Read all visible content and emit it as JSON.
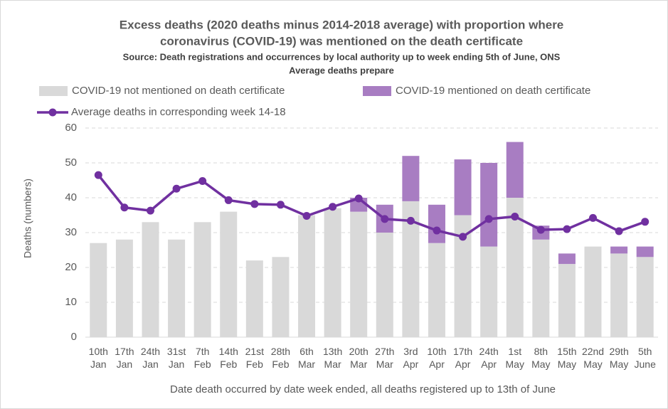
{
  "chart_data": {
    "type": "bar",
    "title": [
      "Excess deaths  (2020 deaths minus 2014-2018 average) with proportion where",
      "coronavirus (COVID-19) was mentioned on the death certificate"
    ],
    "subtitle": [
      "Source: Death registrations and occurrences by local authority up to week ending 5th of June, ONS",
      "Average deaths prepare"
    ],
    "x_label": "Date death occurred by date week ended, all deaths registered up to 13th of June",
    "y_label": "Deaths (numbers)",
    "categories": [
      "10th Jan",
      "17th Jan",
      "24th Jan",
      "31st Jan",
      "7th Feb",
      "14th Feb",
      "21st Feb",
      "28th Feb",
      "6th Mar",
      "13th Mar",
      "20th Mar",
      "27th Mar",
      "3rd Apr",
      "10th Apr",
      "17th Apr",
      "24th Apr",
      "1st May",
      "8th May",
      "15th May",
      "22nd May",
      "29th May",
      "5th June"
    ],
    "series": [
      {
        "name": "COVID-19 not mentioned on death certificate",
        "color": "#d9d9d9",
        "type": "bar",
        "values": [
          27,
          28,
          33,
          28,
          33,
          36,
          22,
          23,
          35,
          37,
          36,
          30,
          39,
          27,
          35,
          26,
          40,
          28,
          21,
          26,
          24,
          23
        ]
      },
      {
        "name": "COVID-19 mentioned on death certificate",
        "color": "#a87dc2",
        "type": "bar",
        "values": [
          0,
          0,
          0,
          0,
          0,
          0,
          0,
          0,
          0,
          0,
          4,
          8,
          13,
          11,
          16,
          24,
          16,
          4,
          3,
          0,
          2,
          3
        ]
      },
      {
        "name": "Average deaths in corresponding week 14-18",
        "color": "#7030a0",
        "type": "line",
        "values": [
          46.5,
          37.2,
          36.3,
          42.6,
          44.8,
          39.3,
          38.2,
          38.0,
          34.8,
          37.4,
          39.8,
          33.9,
          33.4,
          30.6,
          28.8,
          33.9,
          34.6,
          30.8,
          31.0,
          34.2,
          30.4,
          33.1
        ]
      }
    ],
    "stacked": true,
    "ylim": [
      0,
      60
    ],
    "yticks": [
      0,
      10,
      20,
      30,
      40,
      50,
      60
    ],
    "grid": true
  }
}
